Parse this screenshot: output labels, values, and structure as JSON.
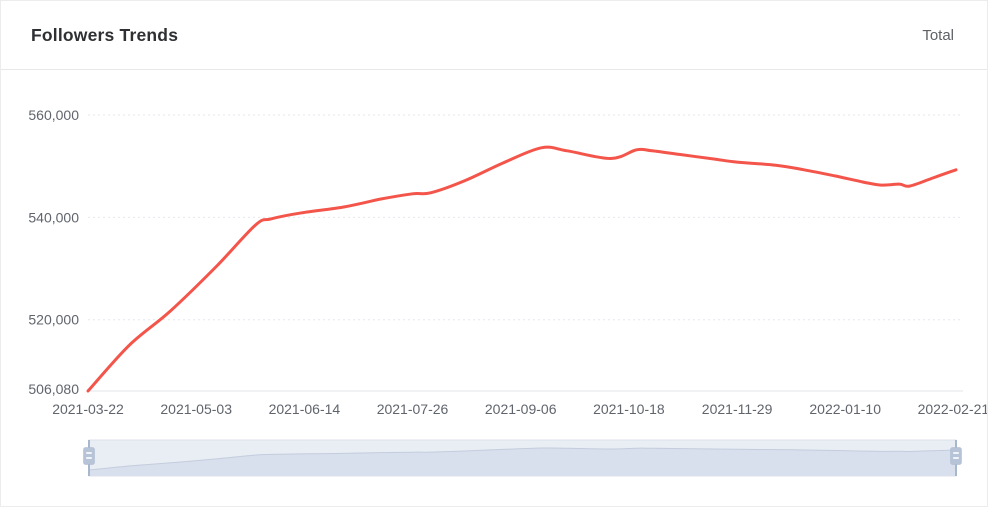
{
  "header": {
    "title": "Followers Trends",
    "legend_label": "Total"
  },
  "colors": {
    "line": "#f4554b",
    "axis_label": "#60646c",
    "grid": "#e4e7ed",
    "axis_line": "#e2e5ea",
    "slider_track": "#e9edf4",
    "slider_track_border": "#dce2ed",
    "slider_fill": "#d9e0ed",
    "slider_line": "#c3cddd",
    "slider_handle": "#b7c3d7",
    "slider_handle_stem": "#a9b7cd",
    "title_text": "#2e3033",
    "header_divider": "#e8e8e8"
  },
  "chart_data": {
    "type": "line",
    "title": "Followers Trends",
    "legend_position": "top-right",
    "grid": "horizontal-dashed",
    "has_range_slider": true,
    "xlabel": "",
    "ylabel": "",
    "ylim": [
      506080,
      560000
    ],
    "x_ticks": [
      "2021-03-22",
      "2021-05-03",
      "2021-06-14",
      "2021-07-26",
      "2021-09-06",
      "2021-10-18",
      "2021-11-29",
      "2022-01-10",
      "2022-02-21"
    ],
    "x_tick_interval_days": 42,
    "y_ticks": [
      {
        "value": 506080,
        "label": "506,080"
      },
      {
        "value": 520000,
        "label": "520,000"
      },
      {
        "value": 540000,
        "label": "540,000"
      },
      {
        "value": 560000,
        "label": "560,000"
      }
    ],
    "series": [
      {
        "name": "Total",
        "color": "#f4554b",
        "x": [
          "2021-03-22",
          "2021-04-07",
          "2021-04-23",
          "2021-05-11",
          "2021-05-26",
          "2021-06-01",
          "2021-06-13",
          "2021-06-29",
          "2021-07-14",
          "2021-07-26",
          "2021-08-02",
          "2021-08-15",
          "2021-08-30",
          "2021-09-14",
          "2021-09-24",
          "2021-10-11",
          "2021-10-21",
          "2021-10-27",
          "2021-11-08",
          "2021-11-20",
          "2021-11-29",
          "2021-12-14",
          "2021-12-25",
          "2022-01-06",
          "2022-01-17",
          "2022-01-24",
          "2022-01-31",
          "2022-02-04",
          "2022-02-13",
          "2022-02-22"
        ],
        "values": [
          506080,
          515000,
          521700,
          530500,
          538500,
          539700,
          540900,
          542000,
          543600,
          544600,
          544800,
          547100,
          550600,
          553600,
          553000,
          551500,
          553200,
          553000,
          552200,
          551400,
          550800,
          550200,
          549300,
          548100,
          546900,
          546300,
          546500,
          546100,
          547700,
          549300
        ]
      }
    ]
  }
}
